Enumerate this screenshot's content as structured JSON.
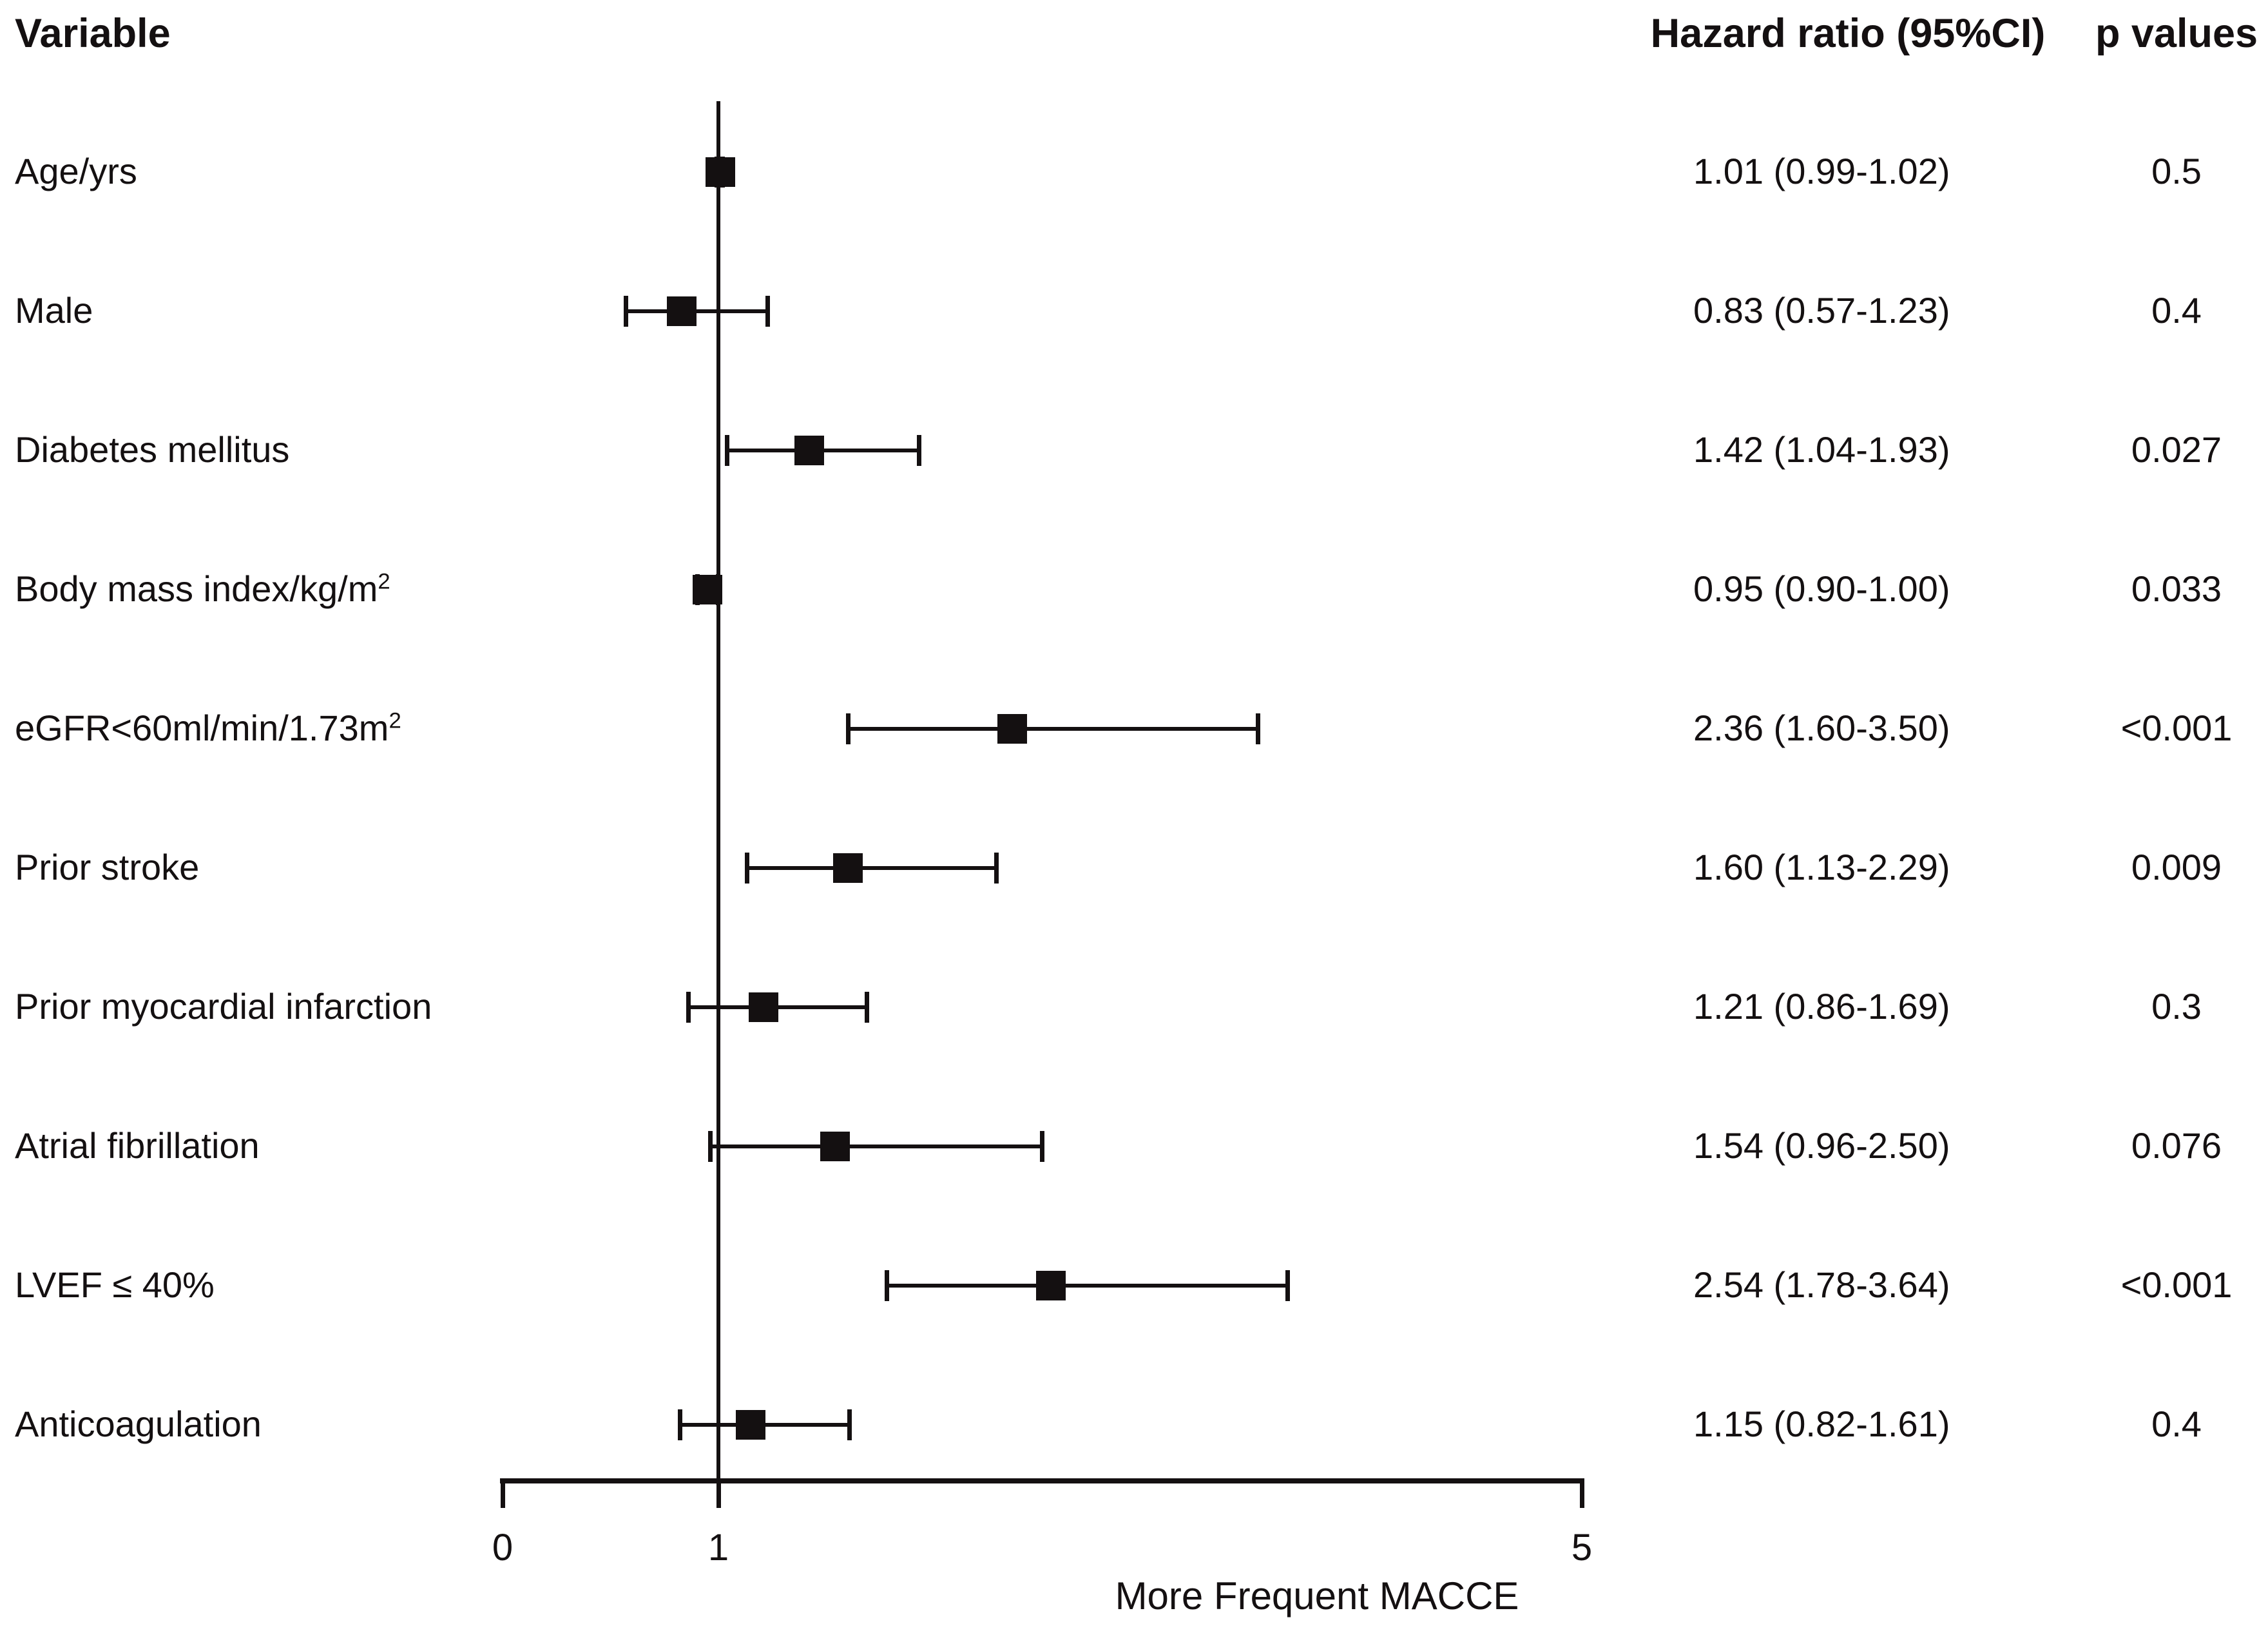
{
  "headers": {
    "variable": "Variable",
    "hazard_ratio": "Hazard ratio (95%CI)",
    "p_values": "p values"
  },
  "chart_data": {
    "type": "forest",
    "title": "",
    "xlabel": "More Frequent MACCE",
    "axis": {
      "min": 0,
      "max": 5,
      "ticks": [
        0,
        1,
        5
      ],
      "reference_line": 1
    },
    "ink_color": "#141011",
    "rows": [
      {
        "label": "Age/yrs",
        "sup": "",
        "hr_text": "1.01 (0.99-1.02)",
        "p": "0.5",
        "est": 1.01,
        "lo": 0.99,
        "hi": 1.02
      },
      {
        "label": "Male",
        "sup": "",
        "hr_text": "0.83 (0.57-1.23)",
        "p": "0.4",
        "est": 0.83,
        "lo": 0.57,
        "hi": 1.23
      },
      {
        "label": "Diabetes mellitus",
        "sup": "",
        "hr_text": "1.42 (1.04-1.93)",
        "p": "0.027",
        "est": 1.42,
        "lo": 1.04,
        "hi": 1.93
      },
      {
        "label": "Body mass index/kg/m",
        "sup": "2",
        "hr_text": "0.95 (0.90-1.00)",
        "p": "0.033",
        "est": 0.95,
        "lo": 0.9,
        "hi": 1.0
      },
      {
        "label": "eGFR<60ml/min/1.73m",
        "sup": "2",
        "hr_text": "2.36 (1.60-3.50)",
        "p": "<0.001",
        "est": 2.36,
        "lo": 1.6,
        "hi": 3.5
      },
      {
        "label": "Prior stroke",
        "sup": "",
        "hr_text": "1.60 (1.13-2.29)",
        "p": "0.009",
        "est": 1.6,
        "lo": 1.13,
        "hi": 2.29
      },
      {
        "label": "Prior myocardial infarction",
        "sup": "",
        "hr_text": "1.21 (0.86-1.69)",
        "p": "0.3",
        "est": 1.21,
        "lo": 0.86,
        "hi": 1.69
      },
      {
        "label": "Atrial fibrillation",
        "sup": "",
        "hr_text": "1.54 (0.96-2.50)",
        "p": "0.076",
        "est": 1.54,
        "lo": 0.96,
        "hi": 2.5
      },
      {
        "label": "LVEF ≤ 40%",
        "sup": "",
        "hr_text": "2.54 (1.78-3.64)",
        "p": "<0.001",
        "est": 2.54,
        "lo": 1.78,
        "hi": 3.64
      },
      {
        "label": "Anticoagulation",
        "sup": "",
        "hr_text": "1.15 (0.82-1.61)",
        "p": "0.4",
        "est": 1.15,
        "lo": 0.82,
        "hi": 1.61
      }
    ]
  }
}
